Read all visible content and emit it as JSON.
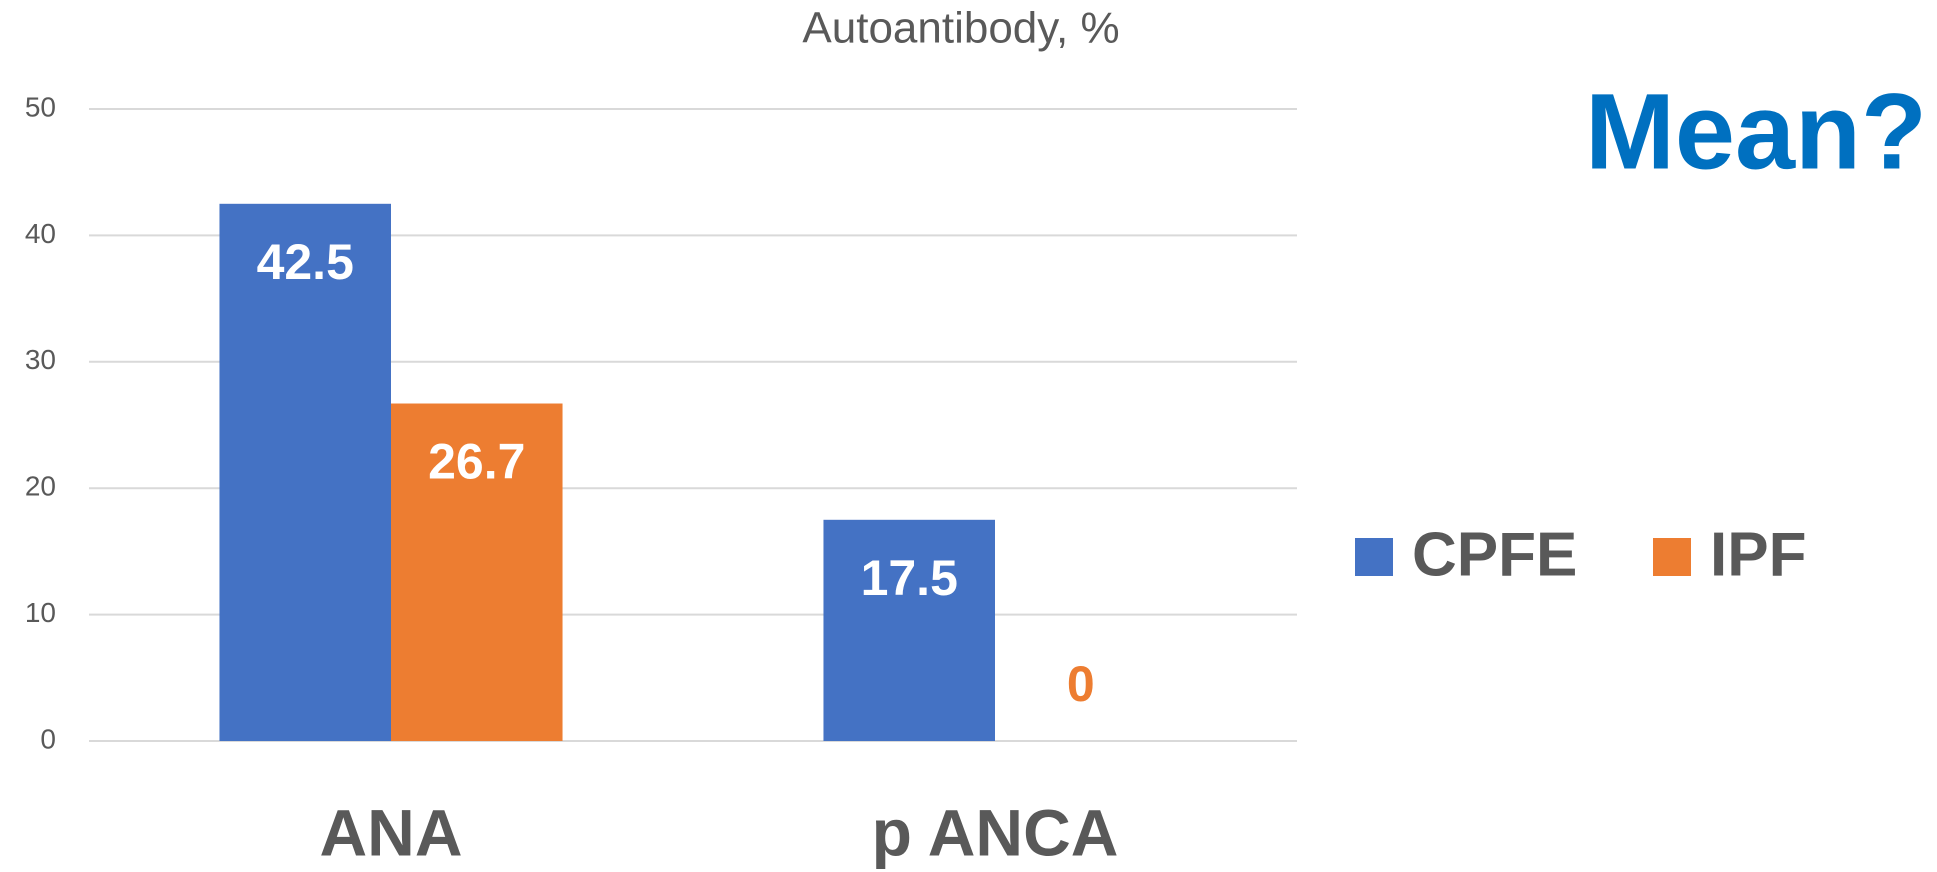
{
  "chart_data": {
    "type": "bar",
    "title": "Autoantibody, %",
    "annotation": "Mean?",
    "categories": [
      "ANA",
      "p ANCA"
    ],
    "series": [
      {
        "name": "CPFE",
        "color": "#4472c4",
        "values": [
          42.5,
          17.5
        ]
      },
      {
        "name": "IPF",
        "color": "#ed7d31",
        "values": [
          26.7,
          0
        ]
      }
    ],
    "ylim": [
      0,
      50
    ],
    "yticks": [
      0,
      10,
      20,
      30,
      40,
      50
    ],
    "grid": true,
    "legend": "right"
  }
}
